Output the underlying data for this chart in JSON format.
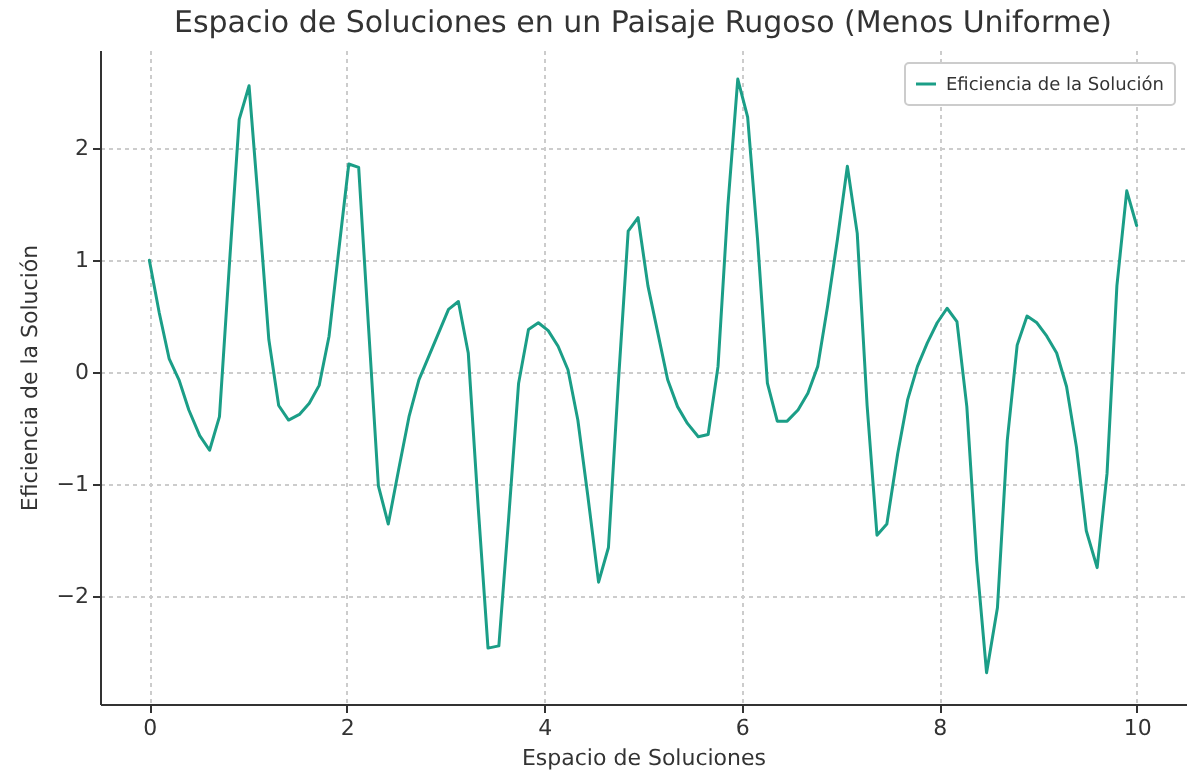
{
  "chart_data": {
    "type": "line",
    "title": "Espacio de Soluciones en un Paisaje Rugoso (Menos Uniforme)",
    "xlabel": "Espacio de Soluciones",
    "ylabel": "Eficiencia de la Solución",
    "x": [
      0,
      0.1,
      0.2,
      0.3,
      0.4,
      0.51,
      0.61,
      0.71,
      0.81,
      0.91,
      1.01,
      1.11,
      1.21,
      1.31,
      1.41,
      1.52,
      1.62,
      1.72,
      1.82,
      1.92,
      2.02,
      2.12,
      2.22,
      2.32,
      2.42,
      2.53,
      2.63,
      2.73,
      2.83,
      2.93,
      3.03,
      3.13,
      3.23,
      3.33,
      3.43,
      3.54,
      3.64,
      3.74,
      3.84,
      3.94,
      4.04,
      4.14,
      4.24,
      4.34,
      4.44,
      4.55,
      4.65,
      4.75,
      4.85,
      4.95,
      5.05,
      5.15,
      5.25,
      5.35,
      5.45,
      5.56,
      5.66,
      5.76,
      5.86,
      5.96,
      6.06,
      6.16,
      6.26,
      6.36,
      6.46,
      6.57,
      6.67,
      6.77,
      6.87,
      6.97,
      7.07,
      7.17,
      7.27,
      7.37,
      7.47,
      7.58,
      7.68,
      7.78,
      7.88,
      7.98,
      8.08,
      8.18,
      8.28,
      8.38,
      8.48,
      8.59,
      8.69,
      8.79,
      8.89,
      8.99,
      9.09,
      9.19,
      9.29,
      9.39,
      9.49,
      9.6,
      9.7,
      9.8,
      9.9,
      10
    ],
    "series": [
      {
        "name": "Eficiencia de la Solución",
        "color": "#1b9e87",
        "values": [
          1.0,
          0.53,
          0.12,
          -0.07,
          -0.34,
          -0.57,
          -0.7,
          -0.4,
          0.95,
          2.26,
          2.56,
          1.45,
          0.29,
          -0.3,
          -0.43,
          -0.38,
          -0.28,
          -0.12,
          0.32,
          1.1,
          1.86,
          1.83,
          0.4,
          -1.02,
          -1.36,
          -0.85,
          -0.4,
          -0.07,
          0.14,
          0.35,
          0.56,
          0.63,
          0.17,
          -1.2,
          -2.47,
          -2.45,
          -1.3,
          -0.1,
          0.38,
          0.44,
          0.37,
          0.23,
          0.02,
          -0.43,
          -1.1,
          -1.88,
          -1.57,
          -0.1,
          1.26,
          1.38,
          0.77,
          0.35,
          -0.07,
          -0.31,
          -0.46,
          -0.58,
          -0.56,
          0.05,
          1.49,
          2.62,
          2.28,
          1.19,
          -0.1,
          -0.44,
          -0.44,
          -0.34,
          -0.19,
          0.05,
          0.59,
          1.19,
          1.84,
          1.24,
          -0.3,
          -1.46,
          -1.36,
          -0.73,
          -0.25,
          0.05,
          0.26,
          0.44,
          0.57,
          0.45,
          -0.31,
          -1.69,
          -2.69,
          -2.11,
          -0.61,
          0.24,
          0.5,
          0.44,
          0.32,
          0.17,
          -0.13,
          -0.67,
          -1.42,
          -1.75,
          -0.91,
          0.77,
          1.62,
          1.31
        ]
      }
    ],
    "xlim": [
      -0.5,
      10.5
    ],
    "ylim": [
      -2.97,
      2.88
    ],
    "xticks": [
      0,
      2,
      4,
      6,
      8,
      10
    ],
    "yticks": [
      -2,
      -1,
      0,
      1,
      2
    ],
    "grid": true,
    "legend": "top right",
    "marker": "none",
    "line_style": "solid"
  }
}
